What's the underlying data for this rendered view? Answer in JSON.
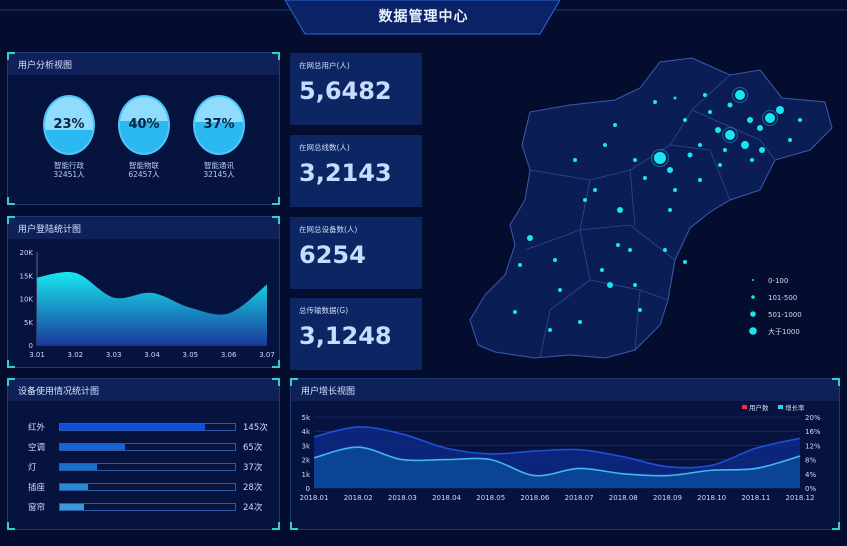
{
  "header": {
    "title": "数据管理中心"
  },
  "user_analysis": {
    "title": "用户分析视图",
    "gauges": [
      {
        "percent": 23,
        "label": "23%",
        "name": "智能行政",
        "count": "32451人"
      },
      {
        "percent": 40,
        "label": "40%",
        "name": "智能物联",
        "count": "62457人"
      },
      {
        "percent": 37,
        "label": "37%",
        "name": "智能通讯",
        "count": "32145人"
      }
    ]
  },
  "stats": [
    {
      "label": "在网总用户(人)",
      "value": "5,6482"
    },
    {
      "label": "在网总线数(人)",
      "value": "3,2143"
    },
    {
      "label": "在网总设备数(人)",
      "value": "6254"
    },
    {
      "label": "总传输数据(G)",
      "value": "3,1248"
    }
  ],
  "map": {
    "legend": [
      {
        "label": "0-100"
      },
      {
        "label": "101-500"
      },
      {
        "label": "501-1000"
      },
      {
        "label": "大于1000"
      }
    ],
    "dot_color": "#19e6f0"
  },
  "devices": {
    "title": "设备使用情况统计图",
    "max": 175,
    "items": [
      {
        "name": "红外",
        "value": 145,
        "label": "145次",
        "color": "#0d4fe0"
      },
      {
        "name": "空调",
        "value": 65,
        "label": "65次",
        "color": "#1565d0"
      },
      {
        "name": "灯",
        "value": 37,
        "label": "37次",
        "color": "#1a6fc8"
      },
      {
        "name": "插座",
        "value": 28,
        "label": "28次",
        "color": "#2a8ad0"
      },
      {
        "name": "窗帘",
        "value": 24,
        "label": "24次",
        "color": "#3a9ad8"
      }
    ]
  },
  "chart_data": [
    {
      "type": "area",
      "title": "用户登陆统计图",
      "categories": [
        "3.01",
        "3.02",
        "3.03",
        "3.04",
        "3.05",
        "3.06",
        "3.07"
      ],
      "values": [
        14500,
        15500,
        10200,
        11200,
        8000,
        6800,
        13000
      ],
      "ylim": [
        0,
        20000
      ],
      "yticks": [
        "0",
        "5K",
        "10K",
        "15K",
        "20K"
      ],
      "grid": false
    },
    {
      "type": "area",
      "title": "用户增长视图",
      "categories": [
        "2018.01",
        "2018.02",
        "2018.03",
        "2018.04",
        "2018.05",
        "2018.06",
        "2018.07",
        "2018.08",
        "2018.09",
        "2018.10",
        "2018.11",
        "2018.12"
      ],
      "series": [
        {
          "name": "用户数",
          "axis": "left",
          "values": [
            3600,
            4300,
            3800,
            2800,
            2400,
            2600,
            2700,
            2200,
            1500,
            1600,
            2800,
            3500
          ],
          "legend_color": "#e8334a",
          "line_color": "#1f4fd8"
        },
        {
          "name": "增长率",
          "axis": "right",
          "values": [
            8.5,
            11.5,
            8,
            8,
            8,
            3.5,
            5.5,
            4,
            3.5,
            5,
            5.5,
            9
          ],
          "legend_color": "#2fd0f0",
          "line_color": "#3fb8f0"
        }
      ],
      "ylim_left": [
        0,
        5000
      ],
      "yticks_left": [
        "0",
        "1k",
        "2k",
        "3k",
        "4k",
        "5k"
      ],
      "ylim_right": [
        0,
        20
      ],
      "yticks_right": [
        "0%",
        "4%",
        "8%",
        "12%",
        "16%",
        "20%"
      ],
      "grid": true,
      "legend": "top-right"
    }
  ]
}
